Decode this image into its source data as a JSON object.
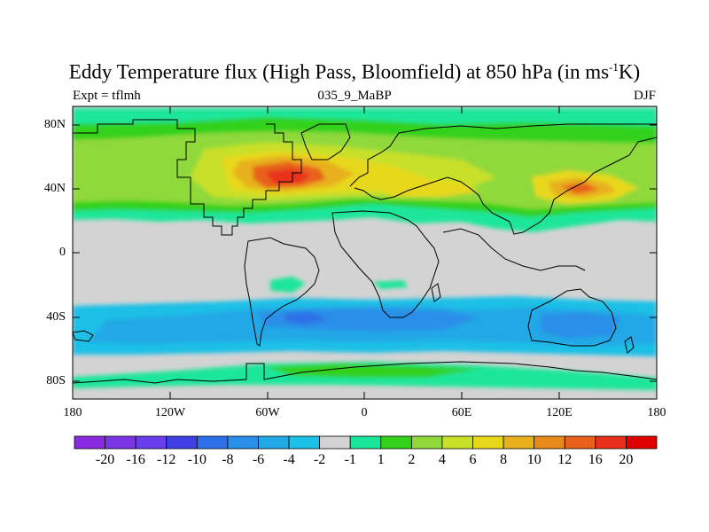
{
  "title": {
    "main_before": "Eddy Temperature flux (High Pass, Bloomfield) at 850 hPa (in ms",
    "superscript": "-1",
    "main_after": "K)"
  },
  "subtitle": {
    "left": "Expt = tflmh",
    "center": "035_9_MaBP",
    "right": "DJF"
  },
  "map": {
    "y_axis_labels": [
      "80N",
      "40N",
      "0",
      "40S",
      "80S"
    ],
    "x_axis_labels": [
      "180",
      "120W",
      "60W",
      "0",
      "60E",
      "120E",
      "180"
    ],
    "neutral_fill": "#d3d3d3"
  },
  "colorbar": {
    "colors": [
      "#8a2be2",
      "#7b35e5",
      "#6a3ded",
      "#3f3fe6",
      "#2d6fe8",
      "#2a8fe8",
      "#22a8e6",
      "#1ac0e6",
      "#d3d3d3",
      "#1ae69a",
      "#33d11a",
      "#8fd93a",
      "#c8e02a",
      "#e8d81a",
      "#e8b01a",
      "#e88a1a",
      "#e8601a",
      "#e8301a",
      "#e00000"
    ],
    "labels": [
      "-20",
      "-16",
      "-12",
      "-10",
      "-8",
      "-6",
      "-4",
      "-2",
      "-1",
      "1",
      "2",
      "4",
      "6",
      "8",
      "10",
      "12",
      "16",
      "20"
    ]
  }
}
